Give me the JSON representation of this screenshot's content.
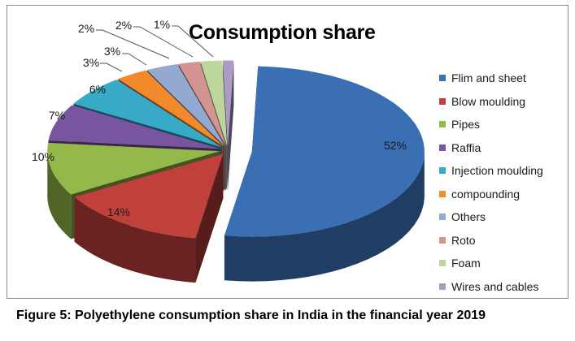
{
  "caption": "Figure 5: Polyethylene consumption share in India in the financial year 2019",
  "chart_data": {
    "type": "pie",
    "title": "Consumption share",
    "style": "3d-exploded",
    "legend_position": "right",
    "series": [
      {
        "category": "Flim and sheet",
        "value": 52,
        "label": "52%",
        "color": "#3a6fb4"
      },
      {
        "category": "Blow moulding",
        "value": 14,
        "label": "14%",
        "color": "#c0403c"
      },
      {
        "category": "Pipes",
        "value": 10,
        "label": "10%",
        "color": "#94b84a"
      },
      {
        "category": "Raffia",
        "value": 7,
        "label": "7%",
        "color": "#7a559f"
      },
      {
        "category": "Injection moulding",
        "value": 6,
        "label": "6%",
        "color": "#38a9c6"
      },
      {
        "category": "compounding",
        "value": 3,
        "label": "3%",
        "color": "#f28a2b"
      },
      {
        "category": "Others",
        "value": 3,
        "label": "3%",
        "color": "#93a9cf"
      },
      {
        "category": "Roto",
        "value": 2,
        "label": "2%",
        "color": "#d49592"
      },
      {
        "category": "Foam",
        "value": 2,
        "label": "2%",
        "color": "#bdd69b"
      },
      {
        "category": "Wires and cables",
        "value": 1,
        "label": "1%",
        "color": "#ab9bc5"
      }
    ]
  }
}
